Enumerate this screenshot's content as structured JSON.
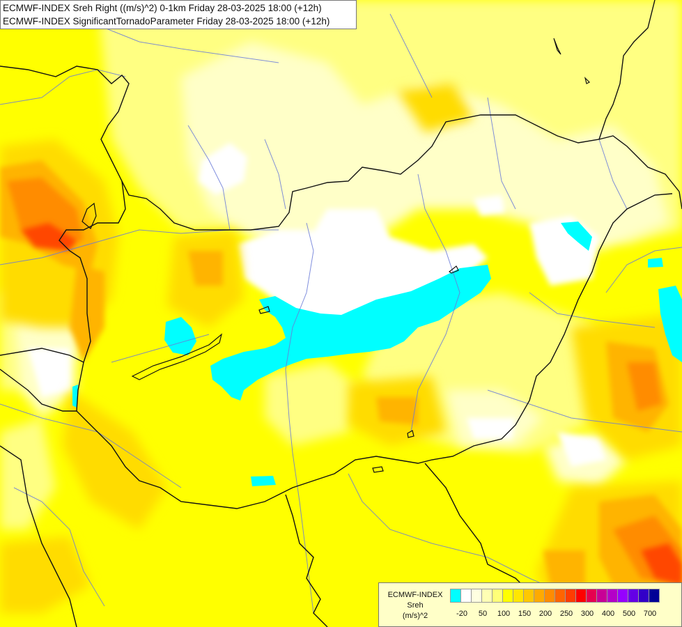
{
  "title": {
    "line1": "ECMWF-INDEX Sreh Right ((m/s)^2) 0-1km Friday 28-03-2025 18:00 (+12h)",
    "line2": "ECMWF-INDEX SignificantTornadoParameter Friday 28-03-2025 18:00 (+12h)"
  },
  "legend": {
    "line1": "ECMWF-INDEX",
    "line2": "Sreh",
    "line3": "(m/s)^2",
    "swatch_colors": [
      "#00ffff",
      "#ffffff",
      "#ffffe0",
      "#ffffb4",
      "#ffff78",
      "#ffff00",
      "#ffe600",
      "#ffc800",
      "#ffaa00",
      "#ff8c00",
      "#ff6400",
      "#ff3c00",
      "#ff0000",
      "#e60050",
      "#c80096",
      "#b400c8",
      "#9600ff",
      "#6400e6",
      "#3200c8",
      "#000096"
    ],
    "labels": [
      "-20",
      "50",
      "100",
      "150",
      "200",
      "250",
      "300",
      "400",
      "500",
      "700"
    ]
  },
  "colors": {
    "white": "#ffffff",
    "pale": "#ffffc8",
    "light": "#ffff82",
    "yellow": "#ffff00",
    "gold": "#ffdc00",
    "orange": "#ffb400",
    "deep_orange": "#ff8c00",
    "red": "#ff4600",
    "cyan": "#00ffff",
    "border": "#111111",
    "river": "#6a7bd8"
  }
}
